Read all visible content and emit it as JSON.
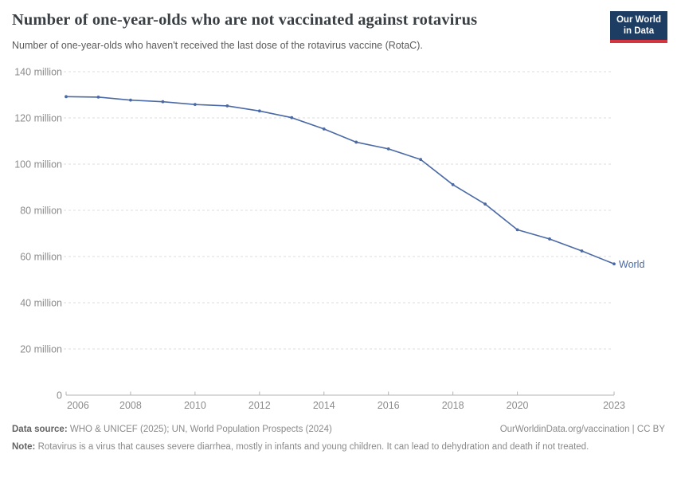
{
  "header": {
    "title": "Number of one-year-olds who are not vaccinated against rotavirus",
    "subtitle": "Number of one-year-olds who haven't received the last dose of the rotavirus vaccine (RotaC).",
    "logo": {
      "line1": "Our World",
      "line2": "in Data"
    }
  },
  "chart_data": {
    "type": "line",
    "title": "Number of one-year-olds who are not vaccinated against rotavirus",
    "xlabel": "",
    "ylabel": "",
    "x": [
      2006,
      2007,
      2008,
      2009,
      2010,
      2011,
      2012,
      2013,
      2014,
      2015,
      2016,
      2017,
      2018,
      2019,
      2020,
      2021,
      2022,
      2023
    ],
    "series": [
      {
        "name": "World",
        "values": [
          129.2,
          129.0,
          127.7,
          127.0,
          125.8,
          125.2,
          123.0,
          120.1,
          115.2,
          109.5,
          106.6,
          102.0,
          91.1,
          82.7,
          71.6,
          67.6,
          62.4,
          56.8
        ]
      }
    ],
    "unit": "million",
    "xlim": [
      2006,
      2023
    ],
    "ylim": [
      0,
      140
    ],
    "x_ticks": [
      2006,
      2008,
      2010,
      2012,
      2014,
      2016,
      2018,
      2020,
      2023
    ],
    "y_ticks": [
      0,
      20,
      40,
      60,
      80,
      100,
      120,
      140
    ],
    "y_tick_suffix": " million",
    "grid": "horizontal-dashed",
    "legend_position": "end-of-line",
    "end_label": "World",
    "line_color": "#4a69a5",
    "grid_color": "#dcdcdc",
    "axis_color": "#b3b3b3",
    "tick_label_color": "#8b8b8b"
  },
  "footer": {
    "source_label": "Data source:",
    "source_text": " WHO & UNICEF (2025); UN, World Population Prospects (2024)",
    "rights": "OurWorldinData.org/vaccination | CC BY",
    "note_label": "Note:",
    "note_text": " Rotavirus is a virus that causes severe diarrhea, mostly in infants and young children. It can lead to dehydration and death if not treated."
  }
}
